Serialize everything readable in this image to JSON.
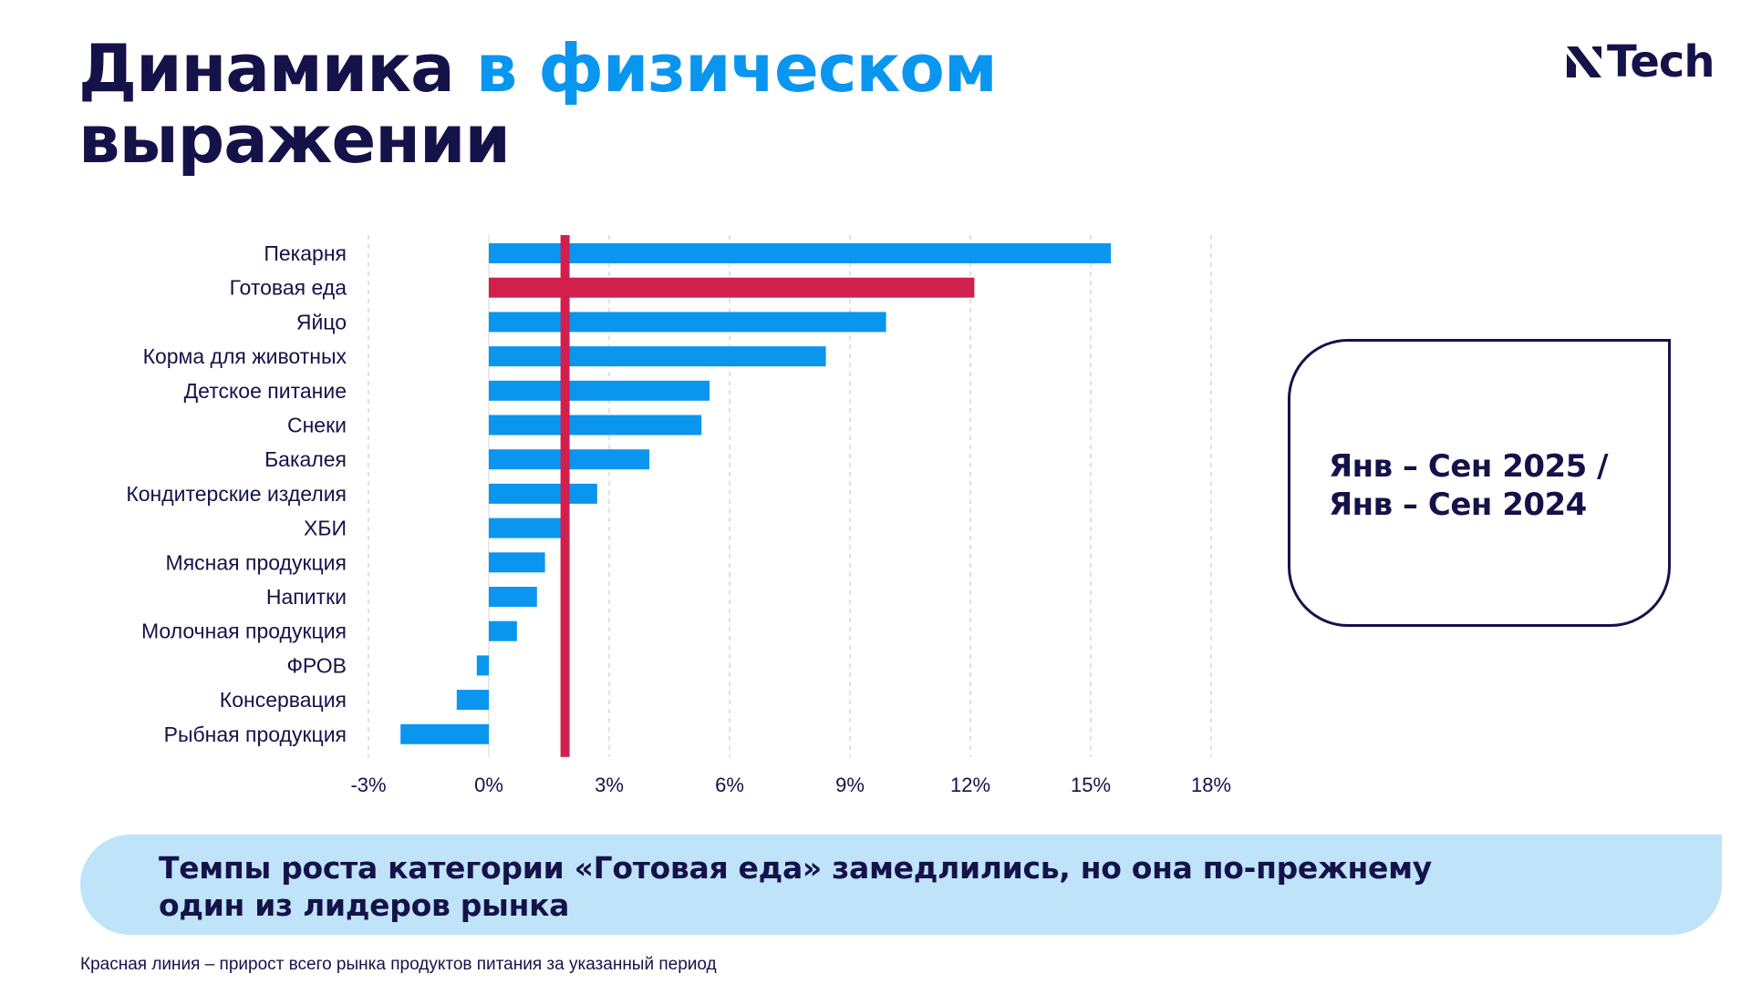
{
  "header": {
    "title_part1": "Динамика",
    "title_part2": "в физическом",
    "title_line2": "выражении",
    "logo_text": "Tech"
  },
  "colors": {
    "navy": "#15124a",
    "accent_blue": "#0a96ef",
    "bar_blue": "#0a96ef",
    "bar_highlight": "#d2204e",
    "market_line": "#d2204e",
    "banner_bg": "#bfe3f9"
  },
  "chart_data": {
    "type": "bar",
    "orientation": "horizontal",
    "categories": [
      "Пекарня",
      "Готовая еда",
      "Яйцо",
      "Корма для животных",
      "Детское питание",
      "Снеки",
      "Бакалея",
      "Кондитерские изделия",
      "ХБИ",
      "Мясная продукция",
      "Напитки",
      "Молочная продукция",
      "ФРОВ",
      "Консервация",
      "Рыбная продукция"
    ],
    "values": [
      15.5,
      12.1,
      9.9,
      8.4,
      5.5,
      5.3,
      4.0,
      2.7,
      1.8,
      1.4,
      1.2,
      0.7,
      -0.3,
      -0.8,
      -2.2
    ],
    "highlight": "Готовая еда",
    "reference_line": 1.9,
    "xlim": [
      -3,
      18
    ],
    "xticks": [
      -3,
      0,
      3,
      6,
      9,
      12,
      15,
      18
    ],
    "xtick_labels": [
      "-3%",
      "0%",
      "3%",
      "6%",
      "9%",
      "12%",
      "15%",
      "18%"
    ],
    "grid": "vertical dashed",
    "title": "",
    "xlabel": "",
    "ylabel": ""
  },
  "period": {
    "line1": "Янв – Сен 2025 /",
    "line2": "Янв – Сен 2024"
  },
  "banner": {
    "line1": "Темпы роста категории «Готовая еда» замедлились, но она по-прежнему",
    "line2": "один из лидеров рынка"
  },
  "footnote": "Красная линия – прирост всего рынка продуктов питания за указанный период"
}
